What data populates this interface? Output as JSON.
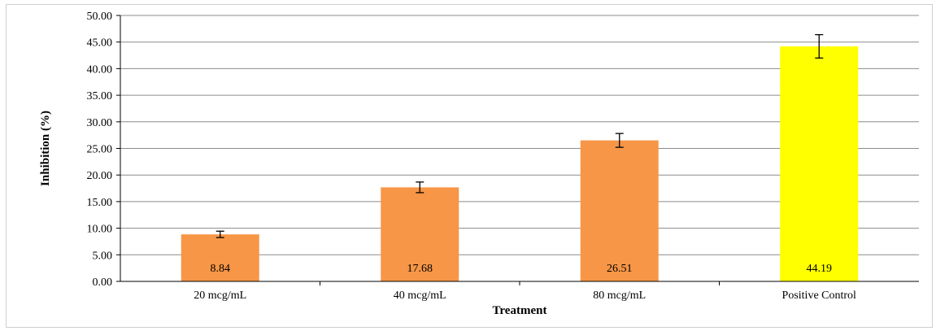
{
  "chart_data": {
    "type": "bar",
    "categories": [
      "20 mcg/mL",
      "40 mcg/mL",
      "80 mcg/mL",
      "Positive Control"
    ],
    "values": [
      8.84,
      17.68,
      26.51,
      44.19
    ],
    "data_labels": [
      "8.84",
      "17.68",
      "26.51",
      "44.19"
    ],
    "error": [
      0.6,
      1.0,
      1.3,
      2.2
    ],
    "bar_colors": [
      "#F79646",
      "#F79646",
      "#F79646",
      "#FFFF00"
    ],
    "title": "",
    "xlabel": "Treatment",
    "ylabel": "Inhibition (%)",
    "ylim": [
      0,
      50
    ],
    "yticks": [
      "0.00",
      "5.00",
      "10.00",
      "15.00",
      "20.00",
      "25.00",
      "30.00",
      "35.00",
      "40.00",
      "45.00",
      "50.00"
    ],
    "grid": true,
    "legend": "none"
  }
}
